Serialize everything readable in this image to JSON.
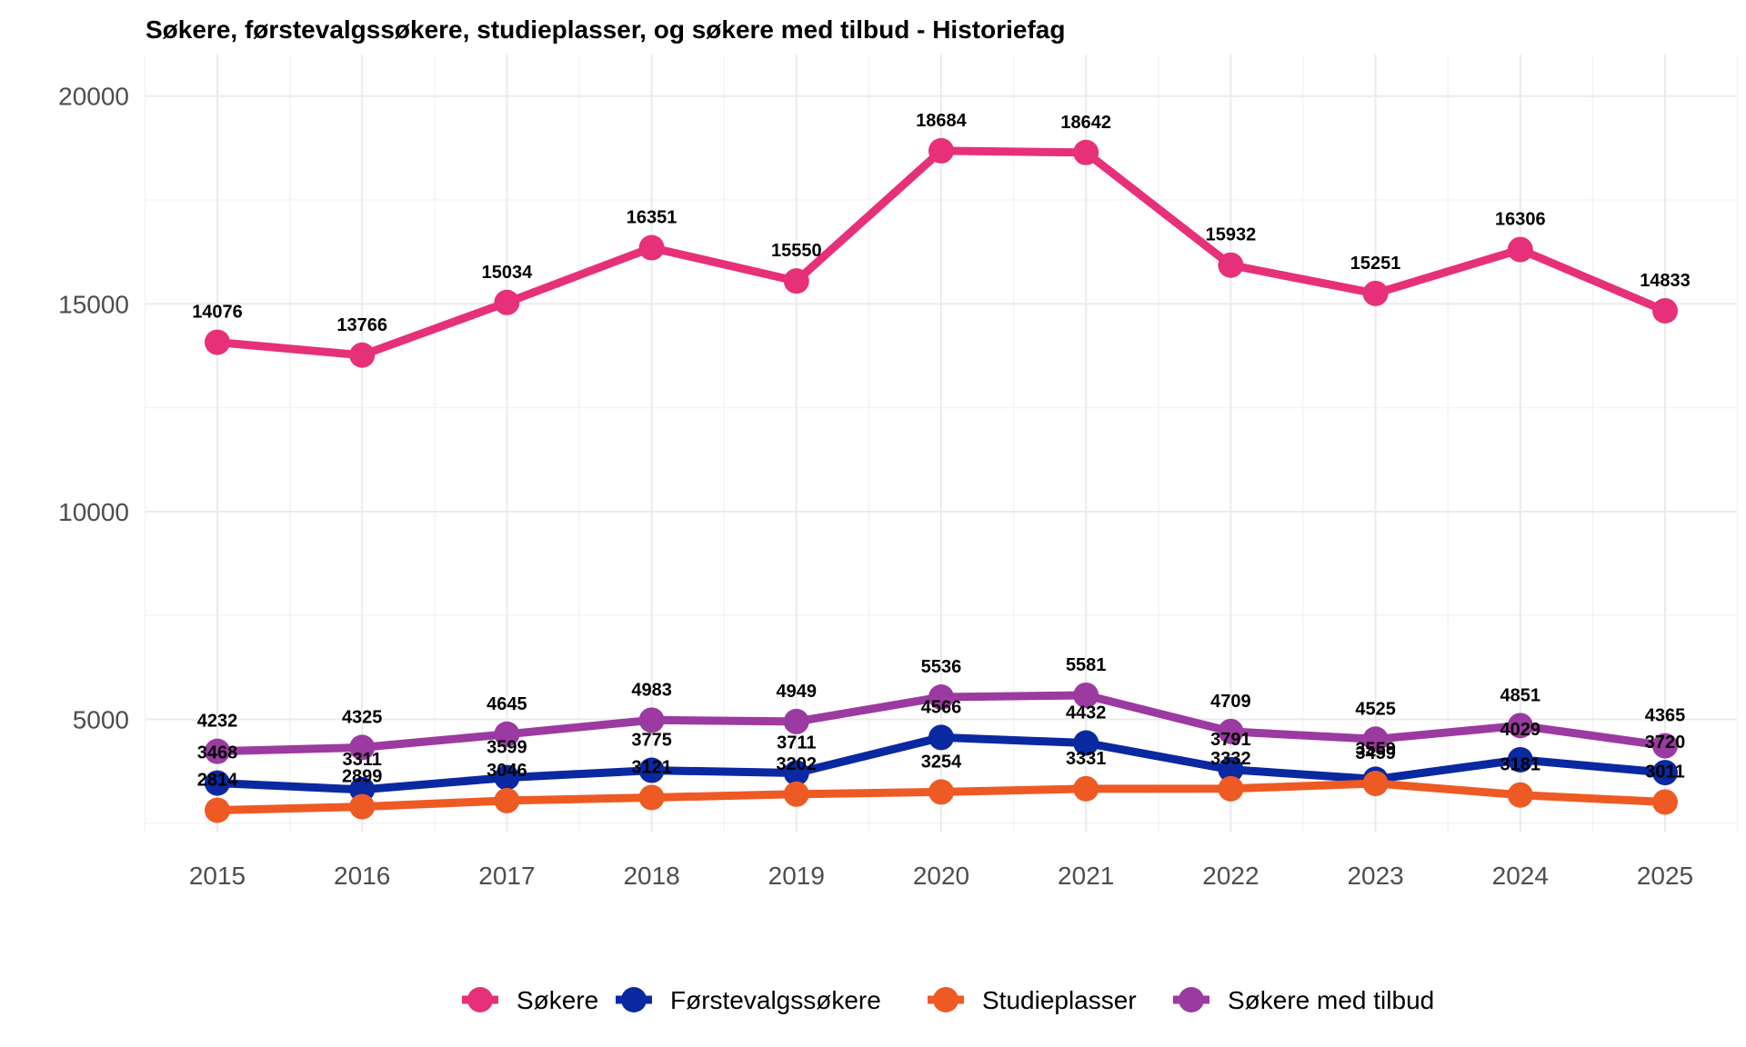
{
  "chart_data": {
    "type": "line",
    "title": "Søkere, førstevalgssøkere, studieplasser, og søkere med tilbud - Historiefag",
    "xlabel": "",
    "ylabel": "",
    "x": [
      2015,
      2016,
      2017,
      2018,
      2019,
      2020,
      2021,
      2022,
      2023,
      2024,
      2025
    ],
    "ylim": [
      2300,
      21000
    ],
    "y_ticks": [
      5000,
      10000,
      15000,
      20000
    ],
    "grid": true,
    "legend_position": "bottom",
    "series": [
      {
        "name": "Søkere",
        "color": "#E7307A",
        "values": [
          14076,
          13766,
          15034,
          16351,
          15550,
          18684,
          18642,
          15932,
          15251,
          16306,
          14833
        ]
      },
      {
        "name": "Førstevalgssøkere",
        "color": "#0A28A0",
        "values": [
          3468,
          3311,
          3599,
          3775,
          3711,
          4566,
          4432,
          3791,
          3559,
          4029,
          3720
        ]
      },
      {
        "name": "Studieplasser",
        "color": "#EE5A24",
        "values": [
          2814,
          2899,
          3046,
          3121,
          3202,
          3254,
          3331,
          3332,
          3459,
          3181,
          3011
        ]
      },
      {
        "name": "Søkere med tilbud",
        "color": "#9B3AA0",
        "values": [
          4232,
          4325,
          4645,
          4983,
          4949,
          5536,
          5581,
          4709,
          4525,
          4851,
          4365
        ]
      }
    ]
  }
}
